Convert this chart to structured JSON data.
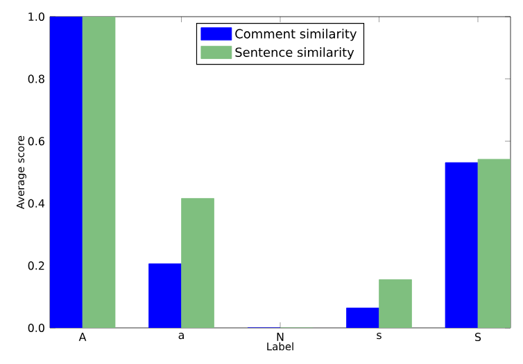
{
  "chart_data": {
    "type": "bar",
    "xlabel": "Label",
    "ylabel": "Average score",
    "categories": [
      "A",
      "a",
      "N",
      "s",
      "S"
    ],
    "series": [
      {
        "name": "Comment similarity",
        "color": "#0000ff",
        "values": [
          1.0,
          0.206,
          0.0,
          0.064,
          0.531
        ]
      },
      {
        "name": "Sentence similarity",
        "color": "#7fbf7f",
        "values": [
          1.0,
          0.416,
          0.0,
          0.155,
          0.542
        ]
      }
    ],
    "ylim": [
      0,
      1
    ],
    "yticks": [
      {
        "value": 0,
        "label": "0.0"
      },
      0.2,
      0.4,
      0.6,
      0.8,
      {
        "value": 1,
        "label": "1.0"
      }
    ],
    "legend": "top",
    "grid": false
  }
}
